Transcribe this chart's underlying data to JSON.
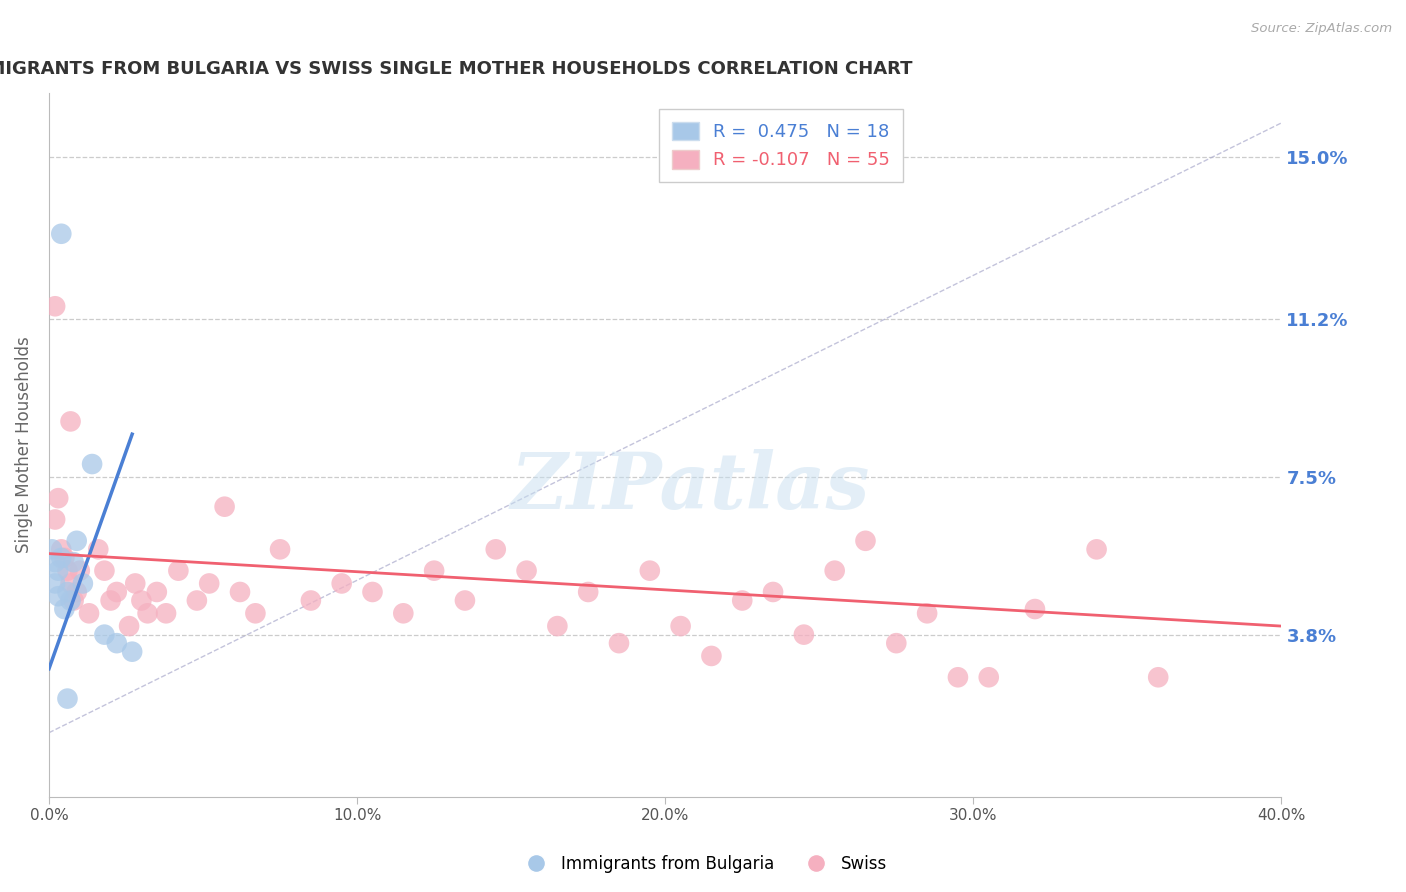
{
  "title": "IMMIGRANTS FROM BULGARIA VS SWISS SINGLE MOTHER HOUSEHOLDS CORRELATION CHART",
  "source_text": "Source: ZipAtlas.com",
  "ylabel": "Single Mother Households",
  "x_min": 0.0,
  "x_max": 0.4,
  "y_min": 0.0,
  "y_max": 0.165,
  "y_ticks": [
    0.038,
    0.075,
    0.112,
    0.15
  ],
  "y_tick_labels": [
    "3.8%",
    "7.5%",
    "11.2%",
    "15.0%"
  ],
  "x_ticks": [
    0.0,
    0.1,
    0.2,
    0.3,
    0.4
  ],
  "x_tick_labels": [
    "0.0%",
    "10.0%",
    "20.0%",
    "30.0%",
    "40.0%"
  ],
  "blue_r": 0.475,
  "blue_n": 18,
  "pink_r": -0.107,
  "pink_n": 55,
  "blue_color": "#a8c8e8",
  "pink_color": "#f5b0c0",
  "blue_line_color": "#4a7fd4",
  "pink_line_color": "#f06070",
  "legend_blue_label": "Immigrants from Bulgaria",
  "legend_pink_label": "Swiss",
  "watermark_text": "ZIPatlas",
  "blue_points": [
    [
      0.001,
      0.058
    ],
    [
      0.002,
      0.055
    ],
    [
      0.002,
      0.05
    ],
    [
      0.003,
      0.053
    ],
    [
      0.003,
      0.047
    ],
    [
      0.004,
      0.056
    ],
    [
      0.005,
      0.044
    ],
    [
      0.006,
      0.048
    ],
    [
      0.007,
      0.046
    ],
    [
      0.008,
      0.055
    ],
    [
      0.009,
      0.06
    ],
    [
      0.011,
      0.05
    ],
    [
      0.014,
      0.078
    ],
    [
      0.018,
      0.038
    ],
    [
      0.022,
      0.036
    ],
    [
      0.027,
      0.034
    ],
    [
      0.004,
      0.132
    ],
    [
      0.006,
      0.023
    ]
  ],
  "pink_points": [
    [
      0.002,
      0.065
    ],
    [
      0.003,
      0.07
    ],
    [
      0.004,
      0.058
    ],
    [
      0.005,
      0.056
    ],
    [
      0.006,
      0.053
    ],
    [
      0.007,
      0.05
    ],
    [
      0.007,
      0.088
    ],
    [
      0.008,
      0.046
    ],
    [
      0.009,
      0.048
    ],
    [
      0.01,
      0.053
    ],
    [
      0.013,
      0.043
    ],
    [
      0.016,
      0.058
    ],
    [
      0.018,
      0.053
    ],
    [
      0.02,
      0.046
    ],
    [
      0.022,
      0.048
    ],
    [
      0.026,
      0.04
    ],
    [
      0.028,
      0.05
    ],
    [
      0.03,
      0.046
    ],
    [
      0.032,
      0.043
    ],
    [
      0.035,
      0.048
    ],
    [
      0.038,
      0.043
    ],
    [
      0.042,
      0.053
    ],
    [
      0.048,
      0.046
    ],
    [
      0.052,
      0.05
    ],
    [
      0.057,
      0.068
    ],
    [
      0.062,
      0.048
    ],
    [
      0.067,
      0.043
    ],
    [
      0.075,
      0.058
    ],
    [
      0.085,
      0.046
    ],
    [
      0.095,
      0.05
    ],
    [
      0.105,
      0.048
    ],
    [
      0.115,
      0.043
    ],
    [
      0.125,
      0.053
    ],
    [
      0.135,
      0.046
    ],
    [
      0.145,
      0.058
    ],
    [
      0.155,
      0.053
    ],
    [
      0.165,
      0.04
    ],
    [
      0.175,
      0.048
    ],
    [
      0.185,
      0.036
    ],
    [
      0.195,
      0.053
    ],
    [
      0.205,
      0.04
    ],
    [
      0.215,
      0.033
    ],
    [
      0.225,
      0.046
    ],
    [
      0.235,
      0.048
    ],
    [
      0.245,
      0.038
    ],
    [
      0.255,
      0.053
    ],
    [
      0.265,
      0.06
    ],
    [
      0.275,
      0.036
    ],
    [
      0.285,
      0.043
    ],
    [
      0.295,
      0.028
    ],
    [
      0.305,
      0.028
    ],
    [
      0.32,
      0.044
    ],
    [
      0.34,
      0.058
    ],
    [
      0.36,
      0.028
    ],
    [
      0.002,
      0.115
    ]
  ],
  "background_color": "#ffffff",
  "grid_color": "#cccccc",
  "title_color": "#333333",
  "axis_label_color": "#666666",
  "right_tick_color": "#4a7fd4",
  "figsize": [
    14.06,
    8.92
  ],
  "dpi": 100
}
